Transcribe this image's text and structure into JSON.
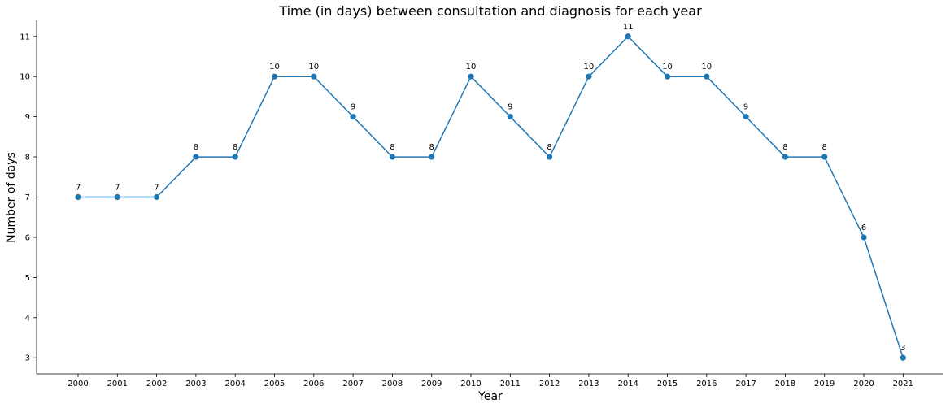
{
  "chart_data": {
    "type": "line",
    "title": "Time (in days) between consultation and diagnosis for each year",
    "xlabel": "Year",
    "ylabel": "Number of days",
    "x": [
      "2000",
      "2001",
      "2002",
      "2003",
      "2004",
      "2005",
      "2006",
      "2007",
      "2008",
      "2009",
      "2010",
      "2011",
      "2012",
      "2013",
      "2014",
      "2015",
      "2016",
      "2017",
      "2018",
      "2019",
      "2020",
      "2021"
    ],
    "values": [
      7,
      7,
      7,
      8,
      8,
      10,
      10,
      9,
      8,
      8,
      10,
      9,
      8,
      10,
      11,
      10,
      10,
      9,
      8,
      8,
      6,
      3
    ],
    "data_labels": [
      "7",
      "7",
      "7",
      "8",
      "8",
      "10",
      "10",
      "9",
      "8",
      "8",
      "10",
      "9",
      "8",
      "10",
      "11",
      "10",
      "10",
      "9",
      "8",
      "8",
      "6",
      "3"
    ],
    "yticks": [
      3,
      4,
      5,
      6,
      7,
      8,
      9,
      10,
      11
    ],
    "ylim": [
      2.6,
      11.4
    ],
    "color": "#1f77b4",
    "grid": false,
    "markers": "circle"
  }
}
